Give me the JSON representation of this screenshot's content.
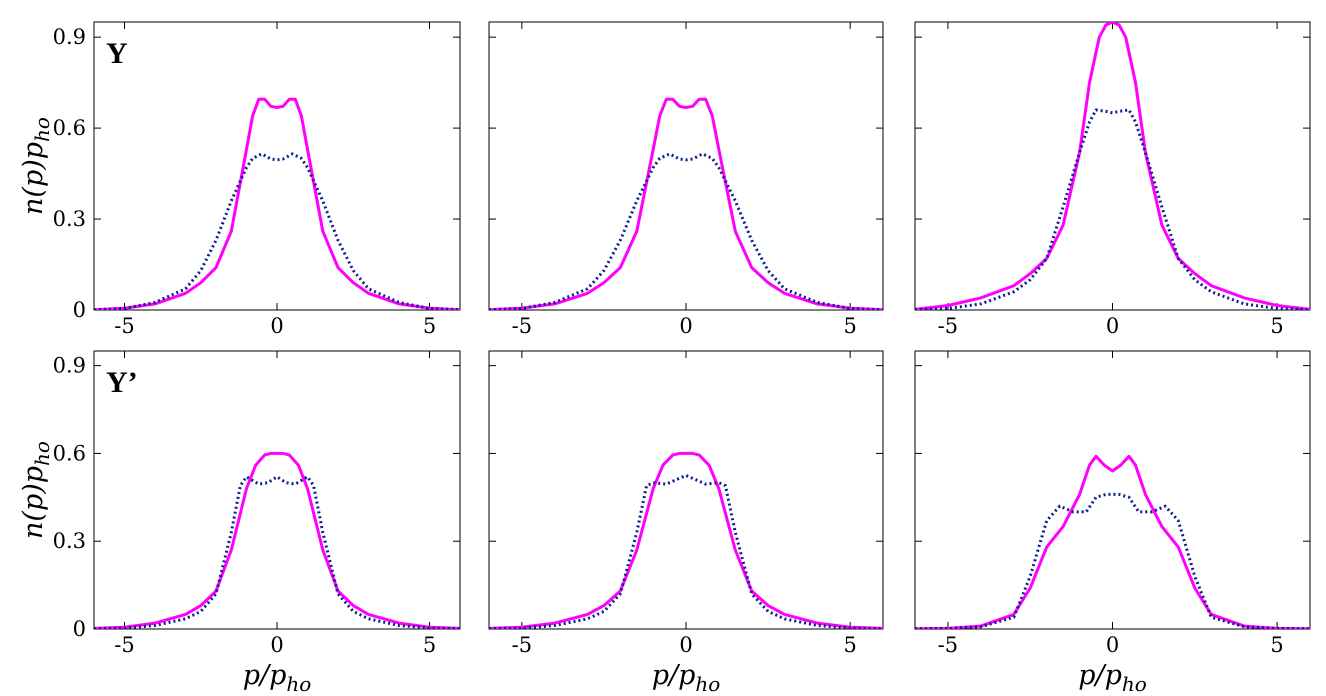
{
  "chart_data": [
    {
      "type": "line",
      "panel_label": "Y",
      "ylabel": "n(p)p_ho",
      "xlabel": "",
      "xlim": [
        -6,
        6
      ],
      "ylim": [
        0,
        0.95
      ],
      "xticks": [
        -5,
        0,
        5
      ],
      "yticks": [
        0,
        0.3,
        0.6,
        0.9
      ],
      "xtick_labels": [
        "-5",
        "0",
        "5"
      ],
      "ytick_labels": [
        "0",
        "0.3",
        "0.6",
        "0.9"
      ],
      "show_xtick_labels": true,
      "show_ytick_labels": true,
      "series": [
        {
          "style": "solid",
          "color": "#ff00ff",
          "x": [
            -6,
            -5,
            -4,
            -3,
            -2.5,
            -2,
            -1.5,
            -1,
            -0.8,
            -0.6,
            -0.4,
            -0.2,
            0,
            0.2,
            0.4,
            0.6,
            0.8,
            1,
            1.5,
            2,
            2.5,
            3,
            4,
            5,
            6
          ],
          "y": [
            0.001,
            0.006,
            0.02,
            0.055,
            0.09,
            0.14,
            0.26,
            0.53,
            0.64,
            0.695,
            0.695,
            0.672,
            0.668,
            0.672,
            0.695,
            0.695,
            0.64,
            0.53,
            0.26,
            0.14,
            0.09,
            0.055,
            0.02,
            0.006,
            0.001
          ]
        },
        {
          "style": "dotted",
          "color": "#0a1e8c",
          "x": [
            -6,
            -5,
            -4,
            -3,
            -2.5,
            -2,
            -1.5,
            -1,
            -0.8,
            -0.5,
            -0.2,
            0,
            0.2,
            0.5,
            0.8,
            1,
            1.5,
            2,
            2.5,
            3,
            4,
            5,
            6
          ],
          "y": [
            0.001,
            0.005,
            0.025,
            0.07,
            0.13,
            0.23,
            0.36,
            0.47,
            0.5,
            0.515,
            0.498,
            0.495,
            0.498,
            0.515,
            0.5,
            0.47,
            0.36,
            0.23,
            0.13,
            0.07,
            0.025,
            0.005,
            0.001
          ]
        }
      ]
    },
    {
      "type": "line",
      "panel_label": "",
      "xlabel": "",
      "ylabel": "",
      "xlim": [
        -6,
        6
      ],
      "ylim": [
        0,
        0.95
      ],
      "xticks": [
        -5,
        0,
        5
      ],
      "yticks": [
        0,
        0.3,
        0.6,
        0.9
      ],
      "xtick_labels": [
        "-5",
        "0",
        "5"
      ],
      "ytick_labels": [
        "0",
        "0.3",
        "0.6",
        "0.9"
      ],
      "show_xtick_labels": true,
      "show_ytick_labels": false,
      "series": [
        {
          "style": "solid",
          "color": "#ff00ff",
          "x": [
            -6,
            -5,
            -4,
            -3,
            -2.5,
            -2,
            -1.5,
            -1,
            -0.8,
            -0.6,
            -0.4,
            -0.2,
            0,
            0.2,
            0.4,
            0.6,
            0.8,
            1,
            1.5,
            2,
            2.5,
            3,
            4,
            5,
            6
          ],
          "y": [
            0.001,
            0.006,
            0.02,
            0.055,
            0.09,
            0.14,
            0.26,
            0.53,
            0.64,
            0.695,
            0.695,
            0.672,
            0.668,
            0.672,
            0.695,
            0.695,
            0.64,
            0.53,
            0.26,
            0.14,
            0.09,
            0.055,
            0.02,
            0.006,
            0.001
          ]
        },
        {
          "style": "dotted",
          "color": "#0a1e8c",
          "x": [
            -6,
            -5,
            -4,
            -3,
            -2.5,
            -2,
            -1.5,
            -1,
            -0.8,
            -0.5,
            -0.2,
            0,
            0.2,
            0.5,
            0.8,
            1,
            1.5,
            2,
            2.5,
            3,
            4,
            5,
            6
          ],
          "y": [
            0.001,
            0.005,
            0.025,
            0.07,
            0.13,
            0.23,
            0.36,
            0.47,
            0.5,
            0.515,
            0.498,
            0.495,
            0.498,
            0.515,
            0.5,
            0.47,
            0.36,
            0.23,
            0.13,
            0.07,
            0.025,
            0.005,
            0.001
          ]
        }
      ]
    },
    {
      "type": "line",
      "panel_label": "",
      "xlabel": "",
      "ylabel": "",
      "xlim": [
        -6,
        6
      ],
      "ylim": [
        0,
        0.95
      ],
      "xticks": [
        -5,
        0,
        5
      ],
      "yticks": [
        0,
        0.3,
        0.6,
        0.9
      ],
      "xtick_labels": [
        "-5",
        "0",
        "5"
      ],
      "ytick_labels": [
        "0",
        "0.3",
        "0.6",
        "0.9"
      ],
      "show_xtick_labels": true,
      "show_ytick_labels": false,
      "series": [
        {
          "style": "solid",
          "color": "#ff00ff",
          "x": [
            -6,
            -5,
            -4,
            -3,
            -2.5,
            -2,
            -1.5,
            -1,
            -0.7,
            -0.4,
            -0.2,
            0,
            0.2,
            0.4,
            0.7,
            1,
            1.5,
            2,
            2.5,
            3,
            4,
            5,
            6
          ],
          "y": [
            0.002,
            0.015,
            0.04,
            0.08,
            0.12,
            0.17,
            0.28,
            0.52,
            0.75,
            0.9,
            0.94,
            0.95,
            0.94,
            0.9,
            0.75,
            0.52,
            0.28,
            0.17,
            0.12,
            0.08,
            0.04,
            0.015,
            0.002
          ]
        },
        {
          "style": "dotted",
          "color": "#0a1e8c",
          "x": [
            -6,
            -5,
            -4,
            -3,
            -2.5,
            -2,
            -1.5,
            -1,
            -0.7,
            -0.5,
            -0.2,
            0,
            0.2,
            0.5,
            0.7,
            1,
            1.5,
            2,
            2.5,
            3,
            4,
            5,
            6
          ],
          "y": [
            0.001,
            0.005,
            0.02,
            0.06,
            0.1,
            0.17,
            0.34,
            0.52,
            0.62,
            0.66,
            0.655,
            0.65,
            0.655,
            0.66,
            0.62,
            0.52,
            0.34,
            0.17,
            0.1,
            0.06,
            0.02,
            0.005,
            0.001
          ]
        }
      ]
    },
    {
      "type": "line",
      "panel_label": "Y’",
      "ylabel": "n(p)p_ho",
      "xlabel": "p/p_ho",
      "xlim": [
        -6,
        6
      ],
      "ylim": [
        0,
        0.95
      ],
      "xticks": [
        -5,
        0,
        5
      ],
      "yticks": [
        0,
        0.3,
        0.6,
        0.9
      ],
      "xtick_labels": [
        "-5",
        "0",
        "5"
      ],
      "ytick_labels": [
        "0",
        "0.3",
        "0.6",
        "0.9"
      ],
      "show_xtick_labels": true,
      "show_ytick_labels": true,
      "series": [
        {
          "style": "solid",
          "color": "#ff00ff",
          "x": [
            -6,
            -5,
            -4,
            -3,
            -2.5,
            -2,
            -1.5,
            -1,
            -0.7,
            -0.4,
            -0.2,
            0,
            0.2,
            0.4,
            0.7,
            1,
            1.5,
            2,
            2.5,
            3,
            4,
            5,
            6
          ],
          "y": [
            0.002,
            0.006,
            0.02,
            0.05,
            0.08,
            0.13,
            0.27,
            0.48,
            0.56,
            0.595,
            0.6,
            0.6,
            0.6,
            0.595,
            0.56,
            0.48,
            0.27,
            0.13,
            0.08,
            0.05,
            0.02,
            0.006,
            0.002
          ]
        },
        {
          "style": "dotted",
          "color": "#0a1e8c",
          "x": [
            -6,
            -5,
            -4,
            -3,
            -2.5,
            -2,
            -1.5,
            -1.2,
            -1,
            -0.6,
            -0.3,
            0,
            0.3,
            0.6,
            1,
            1.2,
            1.5,
            2,
            2.5,
            3,
            4,
            5,
            6
          ],
          "y": [
            0.001,
            0.003,
            0.012,
            0.035,
            0.06,
            0.12,
            0.33,
            0.49,
            0.52,
            0.495,
            0.5,
            0.52,
            0.5,
            0.495,
            0.52,
            0.49,
            0.33,
            0.12,
            0.06,
            0.035,
            0.012,
            0.003,
            0.001
          ]
        }
      ]
    },
    {
      "type": "line",
      "panel_label": "",
      "xlabel": "p/p_ho",
      "ylabel": "",
      "xlim": [
        -6,
        6
      ],
      "ylim": [
        0,
        0.95
      ],
      "xticks": [
        -5,
        0,
        5
      ],
      "yticks": [
        0,
        0.3,
        0.6,
        0.9
      ],
      "xtick_labels": [
        "-5",
        "0",
        "5"
      ],
      "ytick_labels": [
        "0",
        "0.3",
        "0.6",
        "0.9"
      ],
      "show_xtick_labels": true,
      "show_ytick_labels": false,
      "series": [
        {
          "style": "solid",
          "color": "#ff00ff",
          "x": [
            -6,
            -5,
            -4,
            -3,
            -2.5,
            -2,
            -1.5,
            -1,
            -0.7,
            -0.4,
            -0.2,
            0,
            0.2,
            0.4,
            0.7,
            1,
            1.5,
            2,
            2.5,
            3,
            4,
            5,
            6
          ],
          "y": [
            0.002,
            0.006,
            0.02,
            0.05,
            0.08,
            0.13,
            0.27,
            0.48,
            0.56,
            0.595,
            0.6,
            0.6,
            0.6,
            0.595,
            0.56,
            0.48,
            0.27,
            0.13,
            0.08,
            0.05,
            0.02,
            0.006,
            0.002
          ]
        },
        {
          "style": "dotted",
          "color": "#0a1e8c",
          "x": [
            -6,
            -5,
            -4,
            -3,
            -2.5,
            -2,
            -1.5,
            -1.2,
            -1,
            -0.6,
            -0.3,
            0,
            0.3,
            0.6,
            1,
            1.2,
            1.5,
            2,
            2.5,
            3,
            4,
            5,
            6
          ],
          "y": [
            0.001,
            0.003,
            0.012,
            0.035,
            0.06,
            0.12,
            0.33,
            0.49,
            0.5,
            0.495,
            0.51,
            0.525,
            0.51,
            0.495,
            0.5,
            0.49,
            0.33,
            0.12,
            0.06,
            0.035,
            0.012,
            0.003,
            0.001
          ]
        }
      ]
    },
    {
      "type": "line",
      "panel_label": "",
      "xlabel": "p/p_ho",
      "ylabel": "",
      "xlim": [
        -6,
        6
      ],
      "ylim": [
        0,
        0.95
      ],
      "xticks": [
        -5,
        0,
        5
      ],
      "yticks": [
        0,
        0.3,
        0.6,
        0.9
      ],
      "xtick_labels": [
        "-5",
        "0",
        "5"
      ],
      "ytick_labels": [
        "0",
        "0.3",
        "0.6",
        "0.9"
      ],
      "show_xtick_labels": true,
      "show_ytick_labels": false,
      "series": [
        {
          "style": "solid",
          "color": "#ff00ff",
          "x": [
            -6,
            -5,
            -4,
            -3,
            -2.5,
            -2,
            -1.5,
            -1,
            -0.7,
            -0.5,
            -0.25,
            0,
            0.25,
            0.5,
            0.7,
            1,
            1.5,
            2,
            2.5,
            3,
            4,
            5,
            6
          ],
          "y": [
            0.001,
            0.002,
            0.01,
            0.05,
            0.14,
            0.28,
            0.35,
            0.46,
            0.56,
            0.59,
            0.56,
            0.54,
            0.56,
            0.59,
            0.56,
            0.46,
            0.35,
            0.28,
            0.14,
            0.05,
            0.01,
            0.002,
            0.001
          ]
        },
        {
          "style": "dotted",
          "color": "#0a1e8c",
          "x": [
            -6,
            -5,
            -4,
            -3,
            -2.5,
            -2,
            -1.6,
            -1.2,
            -0.8,
            -0.5,
            -0.2,
            0,
            0.2,
            0.5,
            0.8,
            1.2,
            1.6,
            2,
            2.5,
            3,
            4,
            5,
            6
          ],
          "y": [
            0.001,
            0.002,
            0.008,
            0.04,
            0.18,
            0.37,
            0.42,
            0.4,
            0.4,
            0.45,
            0.46,
            0.46,
            0.46,
            0.45,
            0.4,
            0.4,
            0.42,
            0.37,
            0.18,
            0.04,
            0.008,
            0.002,
            0.001
          ]
        }
      ]
    }
  ]
}
